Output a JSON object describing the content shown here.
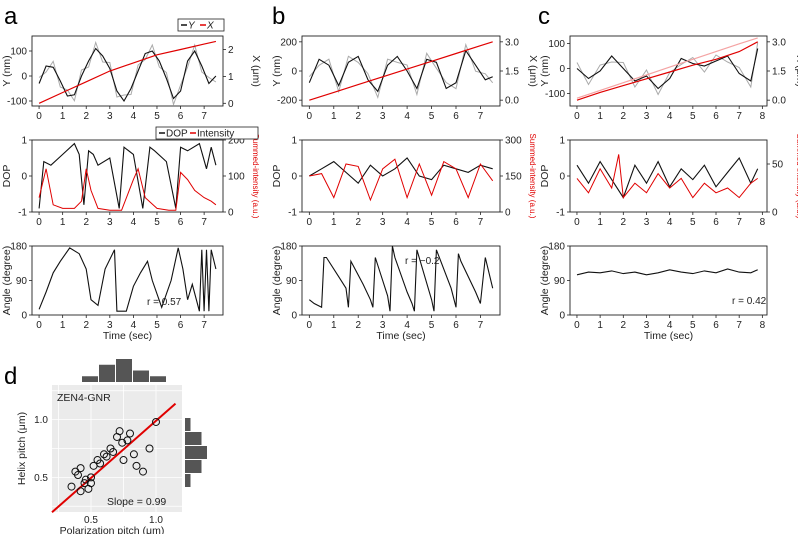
{
  "panel_labels": [
    "a",
    "b",
    "c",
    "d"
  ],
  "colors": {
    "y_trace": "#111111",
    "y_raw": "#aaaaaa",
    "x_trace": "#e00000",
    "x_trace_light": "#f4a3a3",
    "dop": "#111111",
    "intensity": "#e00000",
    "angle": "#111111",
    "fit_line": "#e00000",
    "panel_bg": "#ebebeb",
    "hist_bar": "#555555"
  },
  "texts": {
    "legend_a1_y": "Y",
    "legend_a1_x": "X",
    "legend_a2_dop": "DOP",
    "legend_a2_int": "Intensity",
    "r_a": "r = 0.57",
    "r_b": "r = −0.2",
    "r_c": "r = 0.42",
    "d_label": "ZEN4-GNR",
    "d_slope": "Slope = 0.99"
  },
  "chart_data": [
    {
      "id": "a1",
      "type": "line",
      "xlabel": "",
      "ylabel": "Y (nm)",
      "ylabel_right": "X (μm)",
      "xlim": [
        -0.3,
        7.8
      ],
      "ylim": [
        -120,
        160
      ],
      "ylim_right": [
        -0.1,
        2.5
      ],
      "xticks": [
        "0",
        "1",
        "2",
        "3",
        "4",
        "5",
        "6",
        "7"
      ],
      "yticks": [
        "-100",
        "0",
        "100"
      ],
      "yticks_right": [
        "0",
        "1",
        "2"
      ],
      "series": [
        {
          "name": "Y",
          "axis": "left",
          "x": [
            0,
            0.3,
            0.6,
            0.9,
            1.2,
            1.5,
            1.8,
            2.1,
            2.4,
            2.7,
            3.0,
            3.3,
            3.6,
            3.9,
            4.2,
            4.5,
            4.8,
            5.1,
            5.4,
            5.7,
            6.0,
            6.3,
            6.6,
            6.9,
            7.2,
            7.5
          ],
          "y": [
            -30,
            40,
            35,
            -20,
            -80,
            -75,
            0,
            60,
            110,
            80,
            30,
            -60,
            -100,
            -50,
            20,
            90,
            100,
            60,
            -10,
            -90,
            -60,
            60,
            100,
            40,
            -30,
            0
          ]
        },
        {
          "name": "X",
          "axis": "right",
          "x": [
            0,
            1,
            2,
            3,
            4,
            5,
            6,
            7,
            7.5
          ],
          "y": [
            0,
            0.4,
            0.8,
            1.2,
            1.5,
            1.8,
            2.0,
            2.2,
            2.3
          ]
        }
      ]
    },
    {
      "id": "a2",
      "type": "line",
      "xlabel": "",
      "ylabel": "DOP",
      "ylabel_right": "Summed-intensity (a.u.)",
      "xlim": [
        -0.3,
        7.8
      ],
      "ylim": [
        -1,
        1
      ],
      "ylim_right": [
        0,
        200
      ],
      "xticks": [
        "0",
        "1",
        "2",
        "3",
        "4",
        "5",
        "6",
        "7"
      ],
      "yticks": [
        "-1",
        "0",
        "1"
      ],
      "yticks_right": [
        "0",
        "100",
        "200"
      ],
      "series": [
        {
          "name": "DOP",
          "axis": "left",
          "x": [
            0,
            0.2,
            0.5,
            1.0,
            1.5,
            1.7,
            1.9,
            2.1,
            2.3,
            2.5,
            3.0,
            3.4,
            3.6,
            4.0,
            4.4,
            4.7,
            4.9,
            5.4,
            5.8,
            6.0,
            6.3,
            6.8,
            7.1,
            7.3,
            7.5
          ],
          "y": [
            -0.9,
            0.4,
            0.3,
            0.6,
            0.9,
            0.6,
            -0.8,
            0.7,
            0.6,
            0.3,
            0.5,
            -0.9,
            0.8,
            0.6,
            -0.9,
            0.8,
            0.7,
            0.4,
            -0.9,
            0.8,
            0.7,
            0.9,
            0.2,
            0.8,
            0.3
          ]
        },
        {
          "name": "Intensity",
          "axis": "right",
          "x": [
            0,
            0.3,
            0.6,
            1.0,
            1.5,
            1.8,
            2.0,
            2.2,
            2.5,
            3.0,
            3.5,
            4.0,
            4.2,
            4.5,
            5.0,
            5.5,
            5.8,
            6.0,
            6.3,
            6.6,
            7.0,
            7.3,
            7.5
          ],
          "y": [
            40,
            120,
            20,
            10,
            10,
            30,
            120,
            60,
            10,
            5,
            5,
            90,
            120,
            40,
            10,
            5,
            5,
            110,
            90,
            60,
            40,
            30,
            20
          ]
        }
      ]
    },
    {
      "id": "a3",
      "type": "line",
      "xlabel": "Time (sec)",
      "ylabel": "Angle (degree)",
      "xlim": [
        -0.3,
        7.8
      ],
      "ylim": [
        0,
        180
      ],
      "xticks": [
        "0",
        "1",
        "2",
        "3",
        "4",
        "5",
        "6",
        "7"
      ],
      "yticks": [
        "0",
        "90",
        "180"
      ],
      "series": [
        {
          "name": "Angle",
          "x": [
            0,
            0.3,
            0.6,
            0.9,
            1.3,
            1.7,
            2.0,
            2.2,
            2.5,
            2.8,
            3.2,
            3.3,
            3.4,
            3.7,
            4.0,
            4.3,
            4.6,
            4.8,
            5.2,
            5.6,
            5.9,
            6.1,
            6.3,
            6.5,
            6.8,
            6.9,
            7.0,
            7.1,
            7.2,
            7.3,
            7.5
          ],
          "y": [
            15,
            60,
            110,
            140,
            175,
            160,
            120,
            40,
            25,
            120,
            170,
            10,
            10,
            10,
            75,
            110,
            140,
            90,
            20,
            90,
            175,
            120,
            40,
            80,
            10,
            170,
            10,
            170,
            10,
            170,
            120
          ]
        }
      ]
    },
    {
      "id": "b1",
      "type": "line",
      "xlabel": "",
      "ylabel": "Y (nm)",
      "ylabel_right": "X (μm)",
      "xlim": [
        -0.3,
        7.8
      ],
      "ylim": [
        -240,
        240
      ],
      "ylim_right": [
        -0.3,
        3.3
      ],
      "xticks": [
        "0",
        "1",
        "2",
        "3",
        "4",
        "5",
        "6",
        "7"
      ],
      "yticks": [
        "-200",
        "0",
        "200"
      ],
      "yticks_right": [
        "0.0",
        "1.5",
        "3.0"
      ],
      "series": [
        {
          "name": "Y",
          "axis": "left",
          "x": [
            0,
            0.4,
            0.8,
            1.2,
            1.6,
            2.0,
            2.4,
            2.8,
            3.2,
            3.6,
            4.0,
            4.4,
            4.8,
            5.2,
            5.6,
            6.0,
            6.4,
            6.8,
            7.2,
            7.5
          ],
          "y": [
            -80,
            80,
            40,
            -100,
            60,
            100,
            -60,
            -140,
            40,
            100,
            0,
            -120,
            80,
            60,
            -120,
            -80,
            140,
            40,
            -60,
            -40
          ]
        },
        {
          "name": "X",
          "axis": "right",
          "x": [
            0,
            1,
            2,
            3,
            4,
            5,
            6,
            7,
            7.5
          ],
          "y": [
            0,
            0.4,
            0.8,
            1.2,
            1.6,
            2.0,
            2.4,
            2.8,
            3.0
          ]
        }
      ]
    },
    {
      "id": "b2",
      "type": "line",
      "xlabel": "",
      "ylabel": "DOP",
      "ylabel_right": "Summed-intensity (a.u.)",
      "xlim": [
        -0.3,
        7.8
      ],
      "ylim": [
        -1,
        1
      ],
      "ylim_right": [
        0,
        300
      ],
      "xticks": [
        "0",
        "1",
        "2",
        "3",
        "4",
        "5",
        "6",
        "7"
      ],
      "yticks": [
        "-1",
        "0",
        "1"
      ],
      "yticks_right": [
        "0",
        "150",
        "300"
      ],
      "series": [
        {
          "name": "DOP",
          "axis": "left",
          "x": [
            0,
            0.5,
            1.0,
            1.5,
            2.0,
            2.5,
            3.0,
            3.5,
            4.0,
            4.5,
            5.0,
            5.5,
            6.0,
            6.5,
            7.0,
            7.5
          ],
          "y": [
            0,
            0.2,
            0.4,
            0.1,
            -0.2,
            0.3,
            0,
            0.2,
            0.5,
            0,
            -0.1,
            0.3,
            0.2,
            0.1,
            0.3,
            0.2
          ]
        },
        {
          "name": "Intensity",
          "axis": "right",
          "x": [
            0,
            0.5,
            1.0,
            1.5,
            2.0,
            2.5,
            3.0,
            3.5,
            4.0,
            4.5,
            5.0,
            5.5,
            6.0,
            6.5,
            7.0,
            7.5
          ],
          "y": [
            150,
            160,
            60,
            200,
            190,
            50,
            180,
            220,
            60,
            200,
            70,
            210,
            180,
            60,
            200,
            130
          ]
        }
      ]
    },
    {
      "id": "b3",
      "type": "line",
      "xlabel": "Time (sec)",
      "ylabel": "Angle (degree)",
      "xlim": [
        -0.3,
        7.8
      ],
      "ylim": [
        0,
        180
      ],
      "xticks": [
        "0",
        "1",
        "2",
        "3",
        "4",
        "5",
        "6",
        "7"
      ],
      "yticks": [
        "0",
        "90",
        "180"
      ],
      "series": [
        {
          "name": "Angle",
          "x": [
            0,
            0.2,
            0.5,
            0.6,
            0.7,
            1.2,
            1.5,
            1.6,
            1.7,
            2.2,
            2.5,
            2.6,
            2.7,
            3.2,
            3.3,
            3.4,
            3.5,
            4.0,
            4.2,
            4.3,
            4.4,
            5.0,
            5.1,
            5.2,
            5.8,
            6.0,
            6.1,
            6.2,
            6.8,
            7.0,
            7.2,
            7.5
          ],
          "y": [
            40,
            30,
            20,
            150,
            150,
            100,
            70,
            20,
            140,
            80,
            40,
            20,
            150,
            50,
            10,
            180,
            150,
            60,
            30,
            10,
            170,
            40,
            10,
            170,
            70,
            20,
            160,
            140,
            60,
            30,
            150,
            70
          ]
        }
      ]
    },
    {
      "id": "c1",
      "type": "line",
      "xlabel": "",
      "ylabel": "Y (nm)",
      "ylabel_right": "X (μm)",
      "xlim": [
        -0.3,
        8.2
      ],
      "ylim": [
        -150,
        130
      ],
      "ylim_right": [
        -0.3,
        3.3
      ],
      "xticks": [
        "0",
        "1",
        "2",
        "3",
        "4",
        "5",
        "6",
        "7",
        "8"
      ],
      "yticks": [
        "-100",
        "0",
        "100"
      ],
      "yticks_right": [
        "0.0",
        "1.5",
        "3.0"
      ],
      "series": [
        {
          "name": "Y",
          "axis": "left",
          "x": [
            0,
            0.5,
            1.0,
            1.5,
            2.0,
            2.5,
            3.0,
            3.5,
            4.0,
            4.5,
            5.0,
            5.5,
            6.0,
            6.5,
            7.0,
            7.5,
            7.8
          ],
          "y": [
            0,
            -40,
            -10,
            50,
            0,
            -50,
            -30,
            -80,
            -40,
            40,
            20,
            10,
            30,
            50,
            -20,
            -50,
            80
          ]
        },
        {
          "name": "X",
          "axis": "right",
          "x": [
            0,
            1,
            2,
            3,
            4,
            5,
            6,
            7,
            7.8
          ],
          "y": [
            0,
            0.4,
            0.75,
            1.1,
            1.45,
            1.8,
            2.1,
            2.5,
            3.0
          ]
        },
        {
          "name": "X-smoothed",
          "axis": "right",
          "x": [
            0,
            1,
            2,
            3,
            4,
            5,
            6,
            7,
            7.8
          ],
          "y": [
            0.1,
            0.5,
            0.9,
            1.3,
            1.7,
            2.1,
            2.5,
            2.9,
            3.2
          ]
        }
      ]
    },
    {
      "id": "c2",
      "type": "line",
      "xlabel": "",
      "ylabel": "DOP",
      "ylabel_right": "Summed-intensity (a.u.)",
      "xlim": [
        -0.3,
        8.2
      ],
      "ylim": [
        -1,
        1
      ],
      "ylim_right": [
        0,
        75
      ],
      "xticks": [
        "0",
        "1",
        "2",
        "3",
        "4",
        "5",
        "6",
        "7",
        "8"
      ],
      "yticks": [
        "-1",
        "0",
        "1"
      ],
      "yticks_right": [
        "0",
        "50"
      ],
      "series": [
        {
          "name": "DOP",
          "axis": "left",
          "x": [
            0,
            0.5,
            1.0,
            1.5,
            2.0,
            2.5,
            3.0,
            3.5,
            4.0,
            4.5,
            5.0,
            5.5,
            6.0,
            6.5,
            7.0,
            7.5,
            7.8
          ],
          "y": [
            0.3,
            -0.2,
            0.4,
            -0.1,
            -0.6,
            0.3,
            -0.2,
            0.4,
            -0.3,
            0.2,
            -0.1,
            0.3,
            -0.3,
            0.1,
            0.5,
            -0.2,
            0.2
          ]
        },
        {
          "name": "Intensity",
          "axis": "right",
          "x": [
            0,
            0.5,
            1.0,
            1.5,
            1.8,
            2.0,
            2.5,
            3.0,
            3.5,
            4.0,
            4.5,
            5.0,
            5.5,
            6.0,
            6.5,
            7.0,
            7.5,
            7.8
          ],
          "y": [
            35,
            20,
            45,
            25,
            60,
            15,
            30,
            20,
            40,
            25,
            35,
            15,
            30,
            20,
            25,
            15,
            30,
            35
          ]
        }
      ]
    },
    {
      "id": "c3",
      "type": "line",
      "xlabel": "Time (sec)",
      "ylabel": "Angle (degree)",
      "xlim": [
        -0.3,
        8.2
      ],
      "ylim": [
        0,
        180
      ],
      "xticks": [
        "0",
        "1",
        "2",
        "3",
        "4",
        "5",
        "6",
        "7",
        "8"
      ],
      "yticks": [
        "0",
        "90",
        "180"
      ],
      "series": [
        {
          "name": "Angle",
          "x": [
            0,
            0.5,
            1.0,
            1.5,
            2.0,
            2.5,
            3.0,
            3.5,
            4.0,
            4.5,
            5.0,
            5.5,
            6.0,
            6.5,
            7.0,
            7.5,
            7.8
          ],
          "y": [
            105,
            112,
            110,
            115,
            108,
            112,
            105,
            110,
            118,
            112,
            108,
            115,
            110,
            120,
            112,
            110,
            118
          ]
        }
      ]
    },
    {
      "id": "d",
      "type": "scatter",
      "xlabel": "Polarization pitch (μm)",
      "ylabel": "Helix pitch (μm)",
      "xlim": [
        0.2,
        1.2
      ],
      "ylim": [
        0.2,
        1.3
      ],
      "xticks": [
        "0.5",
        "1.0"
      ],
      "yticks": [
        "0.5",
        "1.0"
      ],
      "slope": 0.99,
      "x": [
        0.35,
        0.38,
        0.4,
        0.42,
        0.45,
        0.46,
        0.48,
        0.5,
        0.52,
        0.55,
        0.57,
        0.6,
        0.62,
        0.65,
        0.67,
        0.7,
        0.72,
        0.74,
        0.75,
        0.78,
        0.8,
        0.83,
        0.85,
        0.9,
        0.95,
        1.0,
        0.42,
        0.5
      ],
      "y": [
        0.42,
        0.55,
        0.52,
        0.58,
        0.45,
        0.48,
        0.4,
        0.5,
        0.6,
        0.65,
        0.62,
        0.7,
        0.68,
        0.75,
        0.72,
        0.85,
        0.9,
        0.8,
        0.65,
        0.82,
        0.88,
        0.7,
        0.6,
        0.55,
        0.75,
        0.98,
        0.38,
        0.45
      ],
      "hist_top": [
        1,
        3,
        4,
        2,
        1
      ],
      "hist_right": [
        1,
        3,
        4,
        3,
        1
      ]
    }
  ]
}
